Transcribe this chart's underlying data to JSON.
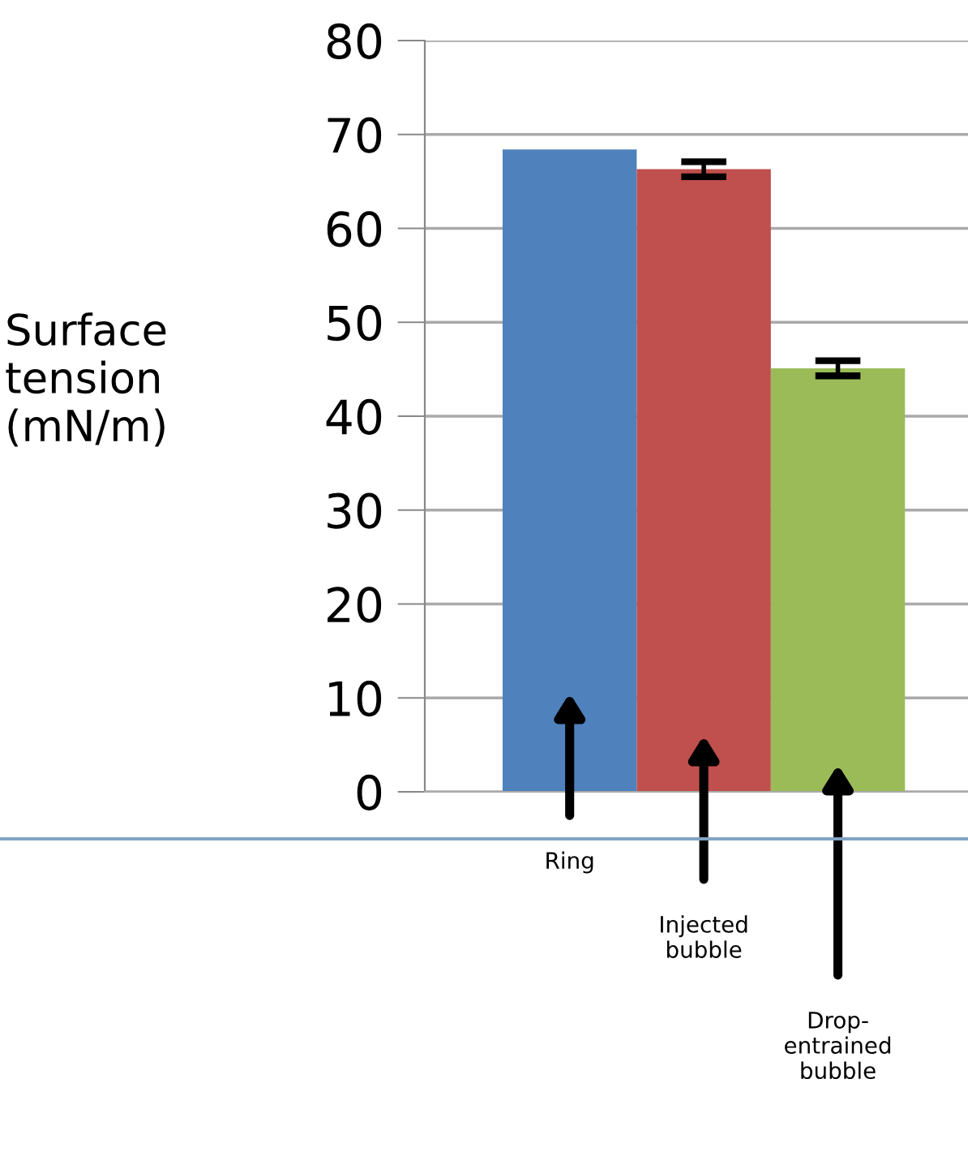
{
  "chart_data": {
    "type": "bar",
    "ylabel": "Surface tension (mN/m)",
    "categories": [
      null,
      null,
      null
    ],
    "annotations": [
      "Ring",
      "Injected bubble",
      "Drop-entrained bubble"
    ],
    "values": [
      68.4,
      66.3,
      45.1
    ],
    "colors": [
      "#4f81bd",
      "#c0504d",
      "#9bbb59"
    ],
    "errors": [
      null,
      0.8,
      0.8
    ],
    "ylim": [
      0,
      80
    ],
    "yticks": [
      0,
      10,
      20,
      30,
      40,
      50,
      60,
      70,
      80
    ],
    "grid": "y"
  }
}
